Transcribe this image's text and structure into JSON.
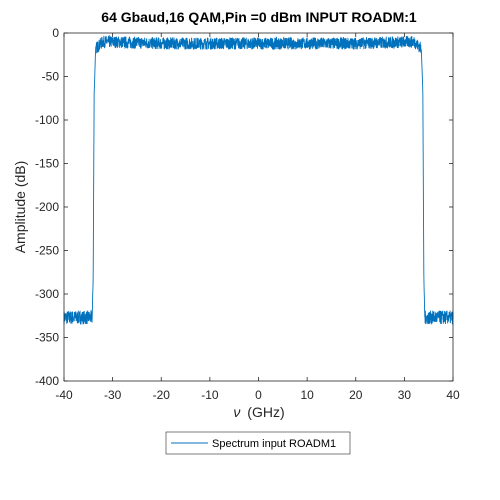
{
  "chart_data": {
    "type": "line",
    "title": "64 Gbaud,16 QAM,Pin =0 dBm INPUT ROADM:1",
    "xlabel_symbol": "ν",
    "xlabel_unit": "(GHz)",
    "ylabel": "Amplitude (dB)",
    "xlim": [
      -40,
      40
    ],
    "ylim": [
      -400,
      0
    ],
    "xticks": [
      -40,
      -30,
      -20,
      -10,
      0,
      10,
      20,
      30,
      40
    ],
    "yticks": [
      0,
      -50,
      -100,
      -150,
      -200,
      -250,
      -300,
      -350,
      -400
    ],
    "grid": false,
    "legend_placement": "bottom-center outside",
    "line_color": "#0072BD",
    "series": [
      {
        "name": "Spectrum input ROADM1",
        "approx_profile": {
          "x": [
            -40,
            -35,
            -34.2,
            -34,
            -33.8,
            -33.5,
            -32,
            -20,
            -10,
            0,
            10,
            20,
            32,
            33.5,
            33.8,
            34,
            34.2,
            35,
            40
          ],
          "y": [
            -327,
            -327,
            -327,
            -280,
            -70,
            -18,
            -10,
            -12,
            -12,
            -12,
            -12,
            -12,
            -10,
            -18,
            -70,
            -280,
            -327,
            -327,
            -327
          ]
        }
      }
    ]
  }
}
